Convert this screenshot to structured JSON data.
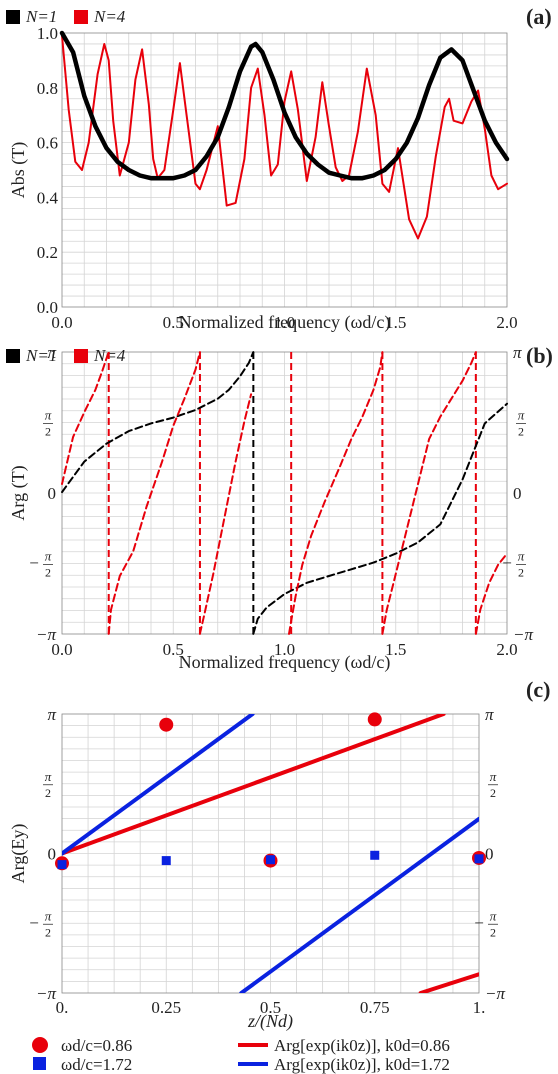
{
  "panel_labels": [
    "(a)",
    "(b)",
    "(c)"
  ],
  "colors": {
    "n1": "#000000",
    "n4": "#e8000b",
    "red": "#e8000b",
    "blue": "#0a22e0",
    "grid": "#d4d4d4"
  },
  "legend_ab": {
    "n1": "N=1",
    "n4": "N=4"
  },
  "legend_c": [
    {
      "marker": "circle",
      "color": "#e8000b",
      "text": "ωd/c=0.86"
    },
    {
      "marker": "line",
      "color": "#e8000b",
      "text": "Arg[exp(ik0z)], k0d=0.86"
    },
    {
      "marker": "square",
      "color": "#0a22e0",
      "text": "ωd/c=1.72"
    },
    {
      "marker": "line",
      "color": "#0a22e0",
      "text": "Arg[exp(ik0z)], k0d=1.72"
    }
  ],
  "chart_data": [
    {
      "type": "line",
      "panel": "(a)",
      "xlabel": "Normalized frequency (ωd/c)",
      "ylabel": "Abs (T)",
      "xlim": [
        0,
        2
      ],
      "ylim": [
        0,
        1
      ],
      "xticks": [
        "0.0",
        "0.5",
        "1.0",
        "1.5",
        "2.0"
      ],
      "yticks": [
        "0.0",
        "0.2",
        "0.4",
        "0.6",
        "0.8",
        "1.0"
      ],
      "grid": true,
      "legend": "top-left",
      "series": [
        {
          "name": "N=1",
          "color": "#000000",
          "x": [
            0,
            0.05,
            0.1,
            0.15,
            0.2,
            0.25,
            0.3,
            0.35,
            0.4,
            0.43,
            0.5,
            0.55,
            0.6,
            0.65,
            0.7,
            0.75,
            0.8,
            0.85,
            0.87,
            0.9,
            0.95,
            1.0,
            1.05,
            1.1,
            1.15,
            1.2,
            1.25,
            1.3,
            1.35,
            1.4,
            1.45,
            1.5,
            1.55,
            1.6,
            1.65,
            1.7,
            1.75,
            1.8,
            1.85,
            1.9,
            1.95,
            2.0
          ],
          "y": [
            1.0,
            0.93,
            0.77,
            0.66,
            0.58,
            0.53,
            0.5,
            0.48,
            0.47,
            0.47,
            0.47,
            0.48,
            0.5,
            0.55,
            0.62,
            0.73,
            0.86,
            0.95,
            0.96,
            0.93,
            0.83,
            0.71,
            0.62,
            0.56,
            0.52,
            0.49,
            0.48,
            0.47,
            0.47,
            0.48,
            0.5,
            0.54,
            0.6,
            0.69,
            0.81,
            0.91,
            0.94,
            0.9,
            0.79,
            0.68,
            0.6,
            0.54
          ]
        },
        {
          "name": "N=4",
          "color": "#e8000b",
          "x": [
            0,
            0.03,
            0.06,
            0.09,
            0.12,
            0.16,
            0.19,
            0.21,
            0.23,
            0.26,
            0.3,
            0.33,
            0.36,
            0.39,
            0.41,
            0.43,
            0.46,
            0.5,
            0.53,
            0.56,
            0.6,
            0.62,
            0.65,
            0.7,
            0.74,
            0.78,
            0.82,
            0.85,
            0.88,
            0.91,
            0.94,
            0.97,
            1.0,
            1.03,
            1.06,
            1.1,
            1.14,
            1.17,
            1.2,
            1.23,
            1.26,
            1.29,
            1.33,
            1.37,
            1.41,
            1.44,
            1.47,
            1.51,
            1.56,
            1.6,
            1.64,
            1.68,
            1.72,
            1.74,
            1.76,
            1.8,
            1.84,
            1.87,
            1.9,
            1.93,
            1.96,
            2.0
          ],
          "y": [
            0.99,
            0.72,
            0.53,
            0.5,
            0.6,
            0.85,
            0.96,
            0.9,
            0.68,
            0.48,
            0.6,
            0.83,
            0.94,
            0.74,
            0.54,
            0.47,
            0.5,
            0.72,
            0.89,
            0.7,
            0.45,
            0.43,
            0.5,
            0.66,
            0.37,
            0.38,
            0.54,
            0.8,
            0.87,
            0.7,
            0.48,
            0.52,
            0.75,
            0.86,
            0.72,
            0.46,
            0.62,
            0.82,
            0.66,
            0.51,
            0.46,
            0.48,
            0.64,
            0.87,
            0.7,
            0.45,
            0.42,
            0.58,
            0.32,
            0.25,
            0.33,
            0.55,
            0.73,
            0.76,
            0.68,
            0.67,
            0.75,
            0.79,
            0.65,
            0.48,
            0.43,
            0.45
          ]
        }
      ]
    },
    {
      "type": "line",
      "panel": "(b)",
      "xlabel": "Normalized frequency (ωd/c)",
      "ylabel": "Arg (T)",
      "xlim": [
        0,
        2
      ],
      "ylim": [
        -3.1416,
        3.1416
      ],
      "xticks": [
        "0.0",
        "0.5",
        "1.0",
        "1.5",
        "2.0"
      ],
      "yticks": [
        "−π",
        "−π/2",
        "0",
        "π/2",
        "π"
      ],
      "grid": true,
      "legend": "top-left",
      "series": [
        {
          "name": "N=1",
          "color": "#000000",
          "dashed": true,
          "segments": [
            {
              "x": [
                0,
                0.1,
                0.2,
                0.3,
                0.4,
                0.5,
                0.6,
                0.7,
                0.75,
                0.8,
                0.84,
                0.86
              ],
              "y": [
                0.02,
                0.7,
                1.1,
                1.38,
                1.55,
                1.68,
                1.85,
                2.1,
                2.3,
                2.6,
                2.9,
                3.14
              ]
            },
            {
              "x": [
                0.86,
                0.88,
                0.92,
                1.0,
                1.1,
                1.2,
                1.3,
                1.4,
                1.5,
                1.6,
                1.7,
                1.8,
                1.9,
                2.0
              ],
              "y": [
                -3.14,
                -2.8,
                -2.55,
                -2.25,
                -2.0,
                -1.85,
                -1.7,
                -1.55,
                -1.35,
                -1.1,
                -0.7,
                0.3,
                1.55,
                1.99
              ]
            }
          ]
        },
        {
          "name": "N=4",
          "color": "#e8000b",
          "dashed": true,
          "segments": [
            {
              "x": [
                0,
                0.05,
                0.1,
                0.15,
                0.18,
                0.2,
                0.21
              ],
              "y": [
                0.2,
                1.25,
                1.8,
                2.3,
                2.7,
                3.0,
                3.14
              ]
            },
            {
              "x": [
                0.21,
                0.22,
                0.26,
                0.32,
                0.38,
                0.45,
                0.5,
                0.55,
                0.6,
                0.62
              ],
              "y": [
                -3.14,
                -2.6,
                -1.85,
                -1.3,
                -0.3,
                0.7,
                1.5,
                2.1,
                2.75,
                3.14
              ]
            },
            {
              "x": [
                0.62,
                0.64,
                0.68,
                0.72,
                0.78,
                0.82,
                0.85
              ],
              "y": [
                -3.14,
                -2.7,
                -1.8,
                -0.8,
                0.7,
                1.6,
                2.2
              ]
            },
            {
              "x": [
                1.02,
                1.03,
                1.05,
                1.08,
                1.12,
                1.18,
                1.25,
                1.3,
                1.35,
                1.4,
                1.43,
                1.44
              ],
              "y": [
                -3.14,
                -2.85,
                -2.3,
                -1.6,
                -0.95,
                -0.2,
                0.6,
                1.2,
                1.7,
                2.3,
                2.8,
                3.14
              ]
            },
            {
              "x": [
                1.44,
                1.46,
                1.5,
                1.55,
                1.6,
                1.65,
                1.7,
                1.75,
                1.8,
                1.84,
                1.86
              ],
              "y": [
                -3.14,
                -2.6,
                -1.8,
                -0.8,
                0.2,
                1.2,
                1.7,
                2.1,
                2.5,
                2.9,
                3.14
              ]
            },
            {
              "x": [
                1.86,
                1.88,
                1.92,
                1.96,
                2.0
              ],
              "y": [
                -3.14,
                -2.6,
                -2.0,
                -1.6,
                -1.35
              ]
            }
          ]
        }
      ],
      "vertical_lines": [
        {
          "x": 0.86,
          "color": "#000000"
        },
        {
          "x": 0.21,
          "color": "#e8000b"
        },
        {
          "x": 0.62,
          "color": "#e8000b"
        },
        {
          "x": 1.03,
          "color": "#e8000b"
        },
        {
          "x": 1.44,
          "color": "#e8000b"
        },
        {
          "x": 1.86,
          "color": "#e8000b"
        }
      ]
    },
    {
      "type": "scatter",
      "panel": "(c)",
      "xlabel": "z/(Nd)",
      "ylabel": "Arg(Ey)",
      "xlim": [
        0,
        1
      ],
      "ylim": [
        -3.1416,
        3.1416
      ],
      "xticks": [
        "0.",
        "0.25",
        "0.5",
        "0.75",
        "1."
      ],
      "yticks": [
        "−π",
        "−π/2",
        "0",
        "π/2",
        "π"
      ],
      "grid": true,
      "legend": "bottom",
      "points": [
        {
          "name": "ωd/c=0.86",
          "marker": "circle",
          "color": "#e8000b",
          "x": [
            0,
            0.25,
            0.5,
            0.75,
            1.0
          ],
          "y": [
            -0.22,
            2.9,
            -0.16,
            3.02,
            -0.1
          ]
        },
        {
          "name": "ωd/c=1.72",
          "marker": "square",
          "color": "#0a22e0",
          "x": [
            0,
            0.25,
            0.5,
            0.75,
            1.0
          ],
          "y": [
            -0.25,
            -0.16,
            -0.14,
            -0.04,
            -0.12
          ]
        }
      ],
      "lines": [
        {
          "name": "Arg[exp(ik0z)], k0d=0.86",
          "color": "#e8000b",
          "segments": [
            {
              "x": [
                0,
                0.915
              ],
              "y": [
                0,
                3.1416
              ]
            },
            {
              "x": [
                0.86,
                1.0
              ],
              "y": [
                -3.1416,
                -2.72
              ]
            }
          ]
        },
        {
          "name": "Arg[exp(ik0z)], k0d=1.72",
          "color": "#0a22e0",
          "segments": [
            {
              "x": [
                0,
                0.457
              ],
              "y": [
                0,
                3.1416
              ]
            },
            {
              "x": [
                0.43,
                1.0
              ],
              "y": [
                -3.1416,
                0.78
              ]
            }
          ]
        }
      ]
    }
  ]
}
